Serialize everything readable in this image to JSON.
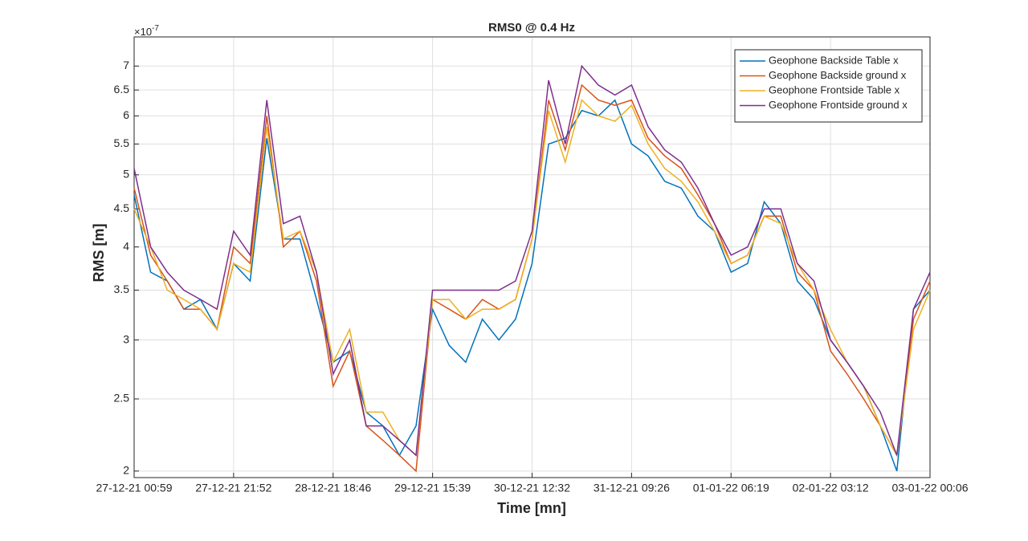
{
  "chart_data": {
    "type": "line",
    "title": "RMS0 @ 0.4 Hz",
    "xlabel": "Time [mn]",
    "ylabel": "RMS [m]",
    "y_multiplier": {
      "base": "×10",
      "exponent": "-7"
    },
    "categories": [
      "27-12-21 00:59",
      null,
      null,
      null,
      null,
      null,
      "27-12-21 21:52",
      null,
      null,
      null,
      null,
      null,
      "28-12-21 18:46",
      null,
      null,
      null,
      null,
      null,
      "29-12-21 15:39",
      null,
      null,
      null,
      null,
      null,
      "30-12-21 12:32",
      null,
      null,
      null,
      null,
      null,
      "31-12-21 09:26",
      null,
      null,
      null,
      null,
      null,
      "01-01-22 06:19",
      null,
      null,
      null,
      null,
      null,
      "02-01-22 03:12",
      null,
      null,
      null,
      null,
      null,
      "03-01-22 00:06"
    ],
    "series": [
      {
        "name": "Geophone Backside Table x",
        "color": "#0072BD",
        "values": [
          4.7,
          3.7,
          3.6,
          3.3,
          3.4,
          3.1,
          3.8,
          3.6,
          5.6,
          4.1,
          4.1,
          3.4,
          2.8,
          2.9,
          2.4,
          2.3,
          2.1,
          2.3,
          3.3,
          2.95,
          2.8,
          3.2,
          3.0,
          3.2,
          3.8,
          5.5,
          5.6,
          6.1,
          6.0,
          6.3,
          5.5,
          5.3,
          4.9,
          4.8,
          4.4,
          4.2,
          3.7,
          3.8,
          4.6,
          4.3,
          3.6,
          3.4,
          3.0,
          2.8,
          2.6,
          2.3,
          2.0,
          3.3,
          3.5
        ]
      },
      {
        "name": "Geophone Backside ground x",
        "color": "#D95319",
        "values": [
          4.8,
          3.9,
          3.6,
          3.3,
          3.3,
          3.1,
          4.0,
          3.8,
          6.0,
          4.0,
          4.2,
          3.6,
          2.6,
          2.9,
          2.3,
          2.2,
          2.1,
          2.0,
          3.4,
          3.3,
          3.2,
          3.4,
          3.3,
          3.4,
          4.1,
          6.3,
          5.4,
          6.6,
          6.3,
          6.2,
          6.3,
          5.6,
          5.3,
          5.1,
          4.7,
          4.3,
          3.8,
          3.9,
          4.4,
          4.4,
          3.7,
          3.5,
          2.9,
          2.7,
          2.5,
          2.3,
          2.1,
          3.2,
          3.6
        ]
      },
      {
        "name": "Geophone Frontside Table x",
        "color": "#EDB120",
        "values": [
          4.5,
          4.0,
          3.5,
          3.4,
          3.3,
          3.1,
          3.8,
          3.7,
          5.8,
          4.1,
          4.2,
          3.7,
          2.8,
          3.1,
          2.4,
          2.4,
          2.2,
          2.1,
          3.4,
          3.4,
          3.2,
          3.3,
          3.3,
          3.4,
          4.1,
          6.1,
          5.2,
          6.3,
          6.0,
          5.9,
          6.2,
          5.5,
          5.1,
          4.9,
          4.6,
          4.2,
          3.8,
          3.9,
          4.4,
          4.3,
          3.8,
          3.5,
          3.1,
          2.8,
          2.6,
          2.3,
          2.1,
          3.1,
          3.5
        ]
      },
      {
        "name": "Geophone Frontside ground x",
        "color": "#7E2F8E",
        "values": [
          5.1,
          4.0,
          3.7,
          3.5,
          3.4,
          3.3,
          4.2,
          3.9,
          6.3,
          4.3,
          4.4,
          3.7,
          2.7,
          3.0,
          2.3,
          2.3,
          2.2,
          2.1,
          3.5,
          3.5,
          3.5,
          3.5,
          3.5,
          3.6,
          4.2,
          6.7,
          5.5,
          7.0,
          6.6,
          6.4,
          6.6,
          5.8,
          5.4,
          5.2,
          4.8,
          4.3,
          3.9,
          4.0,
          4.5,
          4.5,
          3.8,
          3.6,
          3.0,
          2.8,
          2.6,
          2.4,
          2.1,
          3.3,
          3.7
        ]
      }
    ],
    "log_y": true,
    "ylim": [
      1.96,
      7.66
    ],
    "yticks": [
      2,
      2.5,
      3,
      3.5,
      4,
      4.5,
      5,
      5.5,
      6,
      6.5,
      7
    ],
    "grid": true,
    "legend": "top-right"
  }
}
